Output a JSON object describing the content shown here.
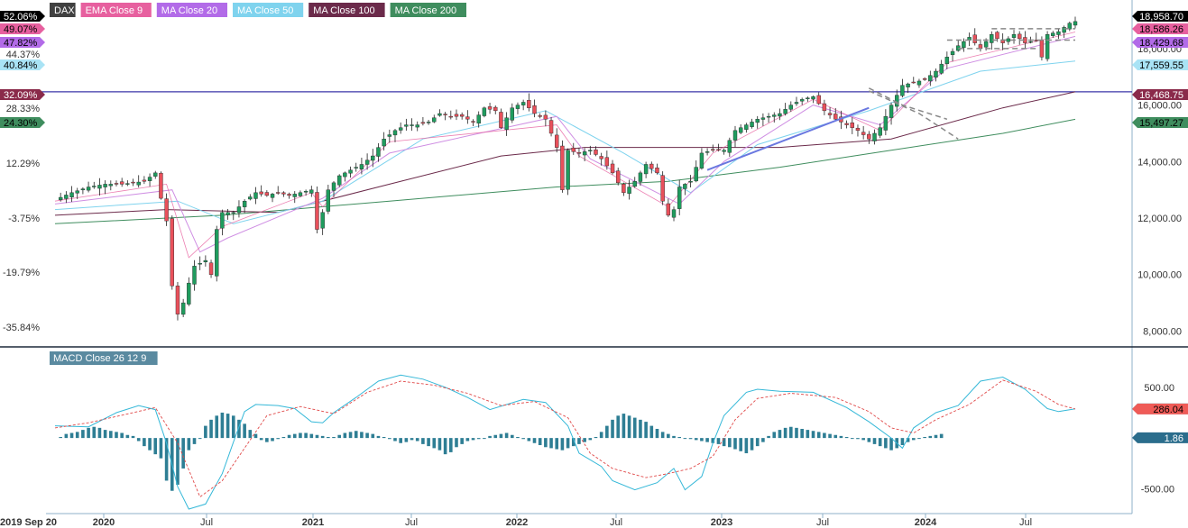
{
  "chart_data": [
    {
      "type": "candlestick",
      "title": "DAX",
      "legend": [
        {
          "name": "DAX",
          "color": "#000000"
        },
        {
          "name": "EMA Close 9",
          "color": "#e7609f"
        },
        {
          "name": "MA Close 20",
          "color": "#b26be8"
        },
        {
          "name": "MA Close 50",
          "color": "#7fd3ee"
        },
        {
          "name": "MA Close 100",
          "color": "#6b2a4a"
        },
        {
          "name": "MA Close 200",
          "color": "#3f8d5e"
        }
      ],
      "x_ticks": [
        "2019 Sep 20",
        "2020",
        "Jul",
        "2021",
        "Jul",
        "2022",
        "Jul",
        "2023",
        "Jul",
        "2024",
        "Jul"
      ],
      "right_axis_ticks": [
        "18,000.00",
        "16,000.00",
        "14,000.00",
        "12,000.00",
        "10,000.00",
        "8,000.00"
      ],
      "left_axis_ticks": [
        "44.37%",
        "28.33%",
        "12.29%",
        "-3.75%",
        "-19.79%",
        "-35.84%"
      ],
      "ylim": [
        7600,
        19400
      ],
      "left_badges": [
        {
          "label": "52.06%",
          "color": "#000000",
          "text_color": "#ffffff"
        },
        {
          "label": "49.07%",
          "color": "#e7609f",
          "text_color": "#000000"
        },
        {
          "label": "47.82%",
          "color": "#b26be8",
          "text_color": "#000000"
        },
        {
          "label": "40.84%",
          "color": "#a9e3f5",
          "text_color": "#000000"
        },
        {
          "label": "32.09%",
          "color": "#8a2a4a",
          "text_color": "#ffffff"
        },
        {
          "label": "24.30%",
          "color": "#3f8d5e",
          "text_color": "#000000"
        }
      ],
      "right_badges": [
        {
          "label": "18,958.70",
          "value": 18958.7,
          "color": "#000000",
          "text_color": "#ffffff"
        },
        {
          "label": "18,586.26",
          "value": 18586.26,
          "color": "#e7609f",
          "text_color": "#000000"
        },
        {
          "label": "18,429.68",
          "value": 18429.68,
          "color": "#b26be8",
          "text_color": "#000000"
        },
        {
          "label": "17,559.55",
          "value": 17559.55,
          "color": "#a9e3f5",
          "text_color": "#000000"
        },
        {
          "label": "16,468.75",
          "value": 16468.75,
          "color": "#8a2a4a",
          "text_color": "#ffffff"
        },
        {
          "label": "15,497.27",
          "value": 15497.27,
          "color": "#3f8d5e",
          "text_color": "#000000"
        }
      ],
      "horizontal_line": 16468.75,
      "close_path": [
        [
          0,
          12650
        ],
        [
          3,
          12900
        ],
        [
          6,
          13100
        ],
        [
          9,
          13200
        ],
        [
          12,
          13200
        ],
        [
          14,
          13250
        ],
        [
          16,
          13300
        ],
        [
          18,
          13600
        ],
        [
          19,
          12700
        ],
        [
          20,
          11900
        ],
        [
          21,
          9600
        ],
        [
          22,
          8600
        ],
        [
          23,
          9000
        ],
        [
          24,
          9700
        ],
        [
          25,
          10300
        ],
        [
          26,
          10400
        ],
        [
          27,
          10500
        ],
        [
          28,
          10000
        ],
        [
          29,
          11600
        ],
        [
          30,
          12200
        ],
        [
          32,
          12200
        ],
        [
          34,
          12600
        ],
        [
          36,
          12900
        ],
        [
          38,
          12800
        ],
        [
          40,
          12900
        ],
        [
          42,
          12800
        ],
        [
          44,
          12900
        ],
        [
          46,
          13000
        ],
        [
          47,
          11600
        ],
        [
          48,
          12200
        ],
        [
          49,
          13000
        ],
        [
          51,
          13500
        ],
        [
          53,
          13700
        ],
        [
          55,
          13900
        ],
        [
          57,
          14200
        ],
        [
          59,
          14800
        ],
        [
          61,
          15100
        ],
        [
          63,
          15300
        ],
        [
          65,
          15300
        ],
        [
          67,
          15400
        ],
        [
          69,
          15700
        ],
        [
          71,
          15600
        ],
        [
          73,
          15600
        ],
        [
          75,
          15400
        ],
        [
          77,
          15900
        ],
        [
          79,
          15800
        ],
        [
          80,
          15200
        ],
        [
          82,
          15900
        ],
        [
          84,
          16100
        ],
        [
          86,
          15700
        ],
        [
          88,
          15500
        ],
        [
          90,
          14500
        ],
        [
          91,
          13000
        ],
        [
          92,
          14400
        ],
        [
          94,
          14300
        ],
        [
          96,
          14400
        ],
        [
          98,
          14100
        ],
        [
          100,
          13600
        ],
        [
          102,
          12900
        ],
        [
          104,
          13300
        ],
        [
          106,
          13900
        ],
        [
          108,
          13600
        ],
        [
          109,
          12600
        ],
        [
          110,
          12100
        ],
        [
          111,
          12300
        ],
        [
          112,
          13100
        ],
        [
          114,
          13300
        ],
        [
          116,
          14300
        ],
        [
          118,
          14400
        ],
        [
          120,
          14400
        ],
        [
          122,
          15100
        ],
        [
          124,
          15300
        ],
        [
          126,
          15500
        ],
        [
          128,
          15600
        ],
        [
          130,
          15700
        ],
        [
          132,
          16000
        ],
        [
          134,
          16200
        ],
        [
          136,
          16300
        ],
        [
          138,
          15800
        ],
        [
          140,
          15500
        ],
        [
          142,
          15300
        ],
        [
          144,
          15100
        ],
        [
          146,
          14800
        ],
        [
          148,
          15200
        ],
        [
          150,
          16000
        ],
        [
          152,
          16700
        ],
        [
          154,
          16800
        ],
        [
          156,
          16900
        ],
        [
          158,
          17200
        ],
        [
          160,
          17700
        ],
        [
          162,
          18100
        ],
        [
          164,
          18400
        ],
        [
          166,
          18000
        ],
        [
          168,
          18500
        ],
        [
          170,
          18200
        ],
        [
          172,
          18500
        ],
        [
          174,
          18200
        ],
        [
          176,
          18300
        ],
        [
          177,
          17700
        ],
        [
          178,
          18500
        ],
        [
          180,
          18600
        ],
        [
          182,
          18900
        ],
        [
          183,
          18958
        ]
      ],
      "ema9_path": [
        [
          0,
          12600
        ],
        [
          20,
          13200
        ],
        [
          24,
          10600
        ],
        [
          30,
          11700
        ],
        [
          46,
          12900
        ],
        [
          48,
          12400
        ],
        [
          60,
          14700
        ],
        [
          90,
          15300
        ],
        [
          94,
          14200
        ],
        [
          110,
          12400
        ],
        [
          118,
          14300
        ],
        [
          136,
          16200
        ],
        [
          148,
          15100
        ],
        [
          160,
          17500
        ],
        [
          183,
          18586
        ]
      ],
      "ma20_path": [
        [
          0,
          12500
        ],
        [
          21,
          13000
        ],
        [
          26,
          10800
        ],
        [
          31,
          11300
        ],
        [
          48,
          12700
        ],
        [
          60,
          14300
        ],
        [
          90,
          15600
        ],
        [
          96,
          14100
        ],
        [
          112,
          12500
        ],
        [
          120,
          14000
        ],
        [
          136,
          16000
        ],
        [
          148,
          15300
        ],
        [
          160,
          17300
        ],
        [
          183,
          18430
        ]
      ],
      "ma50_path": [
        [
          0,
          12300
        ],
        [
          22,
          12600
        ],
        [
          32,
          11800
        ],
        [
          48,
          12600
        ],
        [
          66,
          14800
        ],
        [
          88,
          15800
        ],
        [
          102,
          14300
        ],
        [
          114,
          12900
        ],
        [
          126,
          14600
        ],
        [
          146,
          15800
        ],
        [
          166,
          17200
        ],
        [
          183,
          17560
        ]
      ],
      "ma100_path": [
        [
          0,
          12100
        ],
        [
          20,
          12300
        ],
        [
          40,
          12200
        ],
        [
          60,
          13200
        ],
        [
          80,
          14200
        ],
        [
          95,
          14500
        ],
        [
          110,
          14500
        ],
        [
          130,
          14500
        ],
        [
          150,
          14800
        ],
        [
          170,
          15900
        ],
        [
          183,
          16469
        ]
      ],
      "ma200_path": [
        [
          0,
          11800
        ],
        [
          30,
          12100
        ],
        [
          60,
          12600
        ],
        [
          90,
          13100
        ],
        [
          110,
          13300
        ],
        [
          130,
          13800
        ],
        [
          150,
          14400
        ],
        [
          170,
          15000
        ],
        [
          183,
          15497
        ]
      ],
      "annotations": {
        "support_line": [
          [
            117,
            13700
          ],
          [
            146,
            15900
          ]
        ],
        "channel_lines": [
          [
            [
              146,
              16500
            ],
            [
              155,
              15700
            ],
            [
              162,
              14800
            ]
          ],
          [
            [
              146,
              16600
            ],
            [
              152,
              16000
            ],
            [
              160,
              15500
            ]
          ]
        ],
        "top_dashes": [
          [
            [
              160,
              18300
            ],
            [
              183,
              18300
            ]
          ],
          [
            [
              168,
              18700
            ],
            [
              183,
              18700
            ]
          ],
          [
            [
              162,
              18000
            ],
            [
              176,
              18000
            ]
          ]
        ]
      }
    },
    {
      "type": "bar",
      "title": "MACD Close 26 12 9",
      "right_axis_ticks": [
        "500.00",
        "-500.00"
      ],
      "ylim": [
        -700,
        720
      ],
      "badges": [
        {
          "label": "287.89",
          "value": 287.89,
          "color": "#5cc8d8",
          "text_color": "#000000"
        },
        {
          "label": "286.04",
          "value": 286.04,
          "color": "#ef5b57",
          "text_color": "#000000"
        },
        {
          "label": "1.86",
          "value": 1.86,
          "color": "#2b6d8c",
          "text_color": "#ffffff"
        }
      ],
      "macd_path": [
        [
          0,
          120
        ],
        [
          6,
          110
        ],
        [
          11,
          250
        ],
        [
          15,
          320
        ],
        [
          18,
          280
        ],
        [
          20,
          -50
        ],
        [
          22,
          -480
        ],
        [
          24,
          -700
        ],
        [
          27,
          -650
        ],
        [
          30,
          -350
        ],
        [
          32,
          -40
        ],
        [
          34,
          260
        ],
        [
          36,
          330
        ],
        [
          40,
          320
        ],
        [
          43,
          290
        ],
        [
          46,
          160
        ],
        [
          48,
          150
        ],
        [
          50,
          250
        ],
        [
          54,
          400
        ],
        [
          58,
          560
        ],
        [
          62,
          620
        ],
        [
          66,
          580
        ],
        [
          70,
          500
        ],
        [
          74,
          400
        ],
        [
          78,
          280
        ],
        [
          84,
          380
        ],
        [
          88,
          350
        ],
        [
          92,
          120
        ],
        [
          94,
          -150
        ],
        [
          98,
          -280
        ],
        [
          100,
          -420
        ],
        [
          104,
          -510
        ],
        [
          108,
          -440
        ],
        [
          111,
          -300
        ],
        [
          113,
          -510
        ],
        [
          116,
          -380
        ],
        [
          118,
          -50
        ],
        [
          120,
          220
        ],
        [
          124,
          450
        ],
        [
          126,
          480
        ],
        [
          130,
          460
        ],
        [
          136,
          450
        ],
        [
          142,
          300
        ],
        [
          146,
          160
        ],
        [
          150,
          0
        ],
        [
          152,
          -100
        ],
        [
          154,
          100
        ],
        [
          158,
          250
        ],
        [
          162,
          320
        ],
        [
          166,
          560
        ],
        [
          170,
          600
        ],
        [
          174,
          480
        ],
        [
          178,
          290
        ],
        [
          180,
          260
        ],
        [
          183,
          288
        ]
      ],
      "signal_path": [
        [
          0,
          100
        ],
        [
          6,
          150
        ],
        [
          14,
          250
        ],
        [
          18,
          300
        ],
        [
          22,
          -50
        ],
        [
          26,
          -580
        ],
        [
          30,
          -420
        ],
        [
          34,
          -100
        ],
        [
          38,
          220
        ],
        [
          44,
          310
        ],
        [
          50,
          240
        ],
        [
          56,
          450
        ],
        [
          62,
          560
        ],
        [
          68,
          520
        ],
        [
          74,
          440
        ],
        [
          80,
          320
        ],
        [
          86,
          360
        ],
        [
          92,
          200
        ],
        [
          96,
          -150
        ],
        [
          100,
          -300
        ],
        [
          106,
          -390
        ],
        [
          110,
          -350
        ],
        [
          114,
          -300
        ],
        [
          118,
          -180
        ],
        [
          122,
          180
        ],
        [
          126,
          390
        ],
        [
          132,
          440
        ],
        [
          140,
          400
        ],
        [
          146,
          260
        ],
        [
          150,
          100
        ],
        [
          154,
          50
        ],
        [
          158,
          180
        ],
        [
          164,
          330
        ],
        [
          170,
          570
        ],
        [
          176,
          460
        ],
        [
          180,
          330
        ],
        [
          183,
          286
        ]
      ],
      "histogram": [
        10,
        40,
        50,
        60,
        80,
        100,
        110,
        100,
        80,
        70,
        60,
        50,
        30,
        20,
        -30,
        -80,
        -120,
        -160,
        -200,
        -420,
        -520,
        -460,
        -300,
        -120,
        -60,
        0,
        120,
        180,
        220,
        250,
        240,
        220,
        180,
        140,
        80,
        40,
        -20,
        -40,
        -30,
        -10,
        10,
        30,
        40,
        50,
        50,
        40,
        30,
        20,
        10,
        10,
        30,
        50,
        60,
        70,
        60,
        50,
        40,
        20,
        10,
        -10,
        -30,
        -50,
        -40,
        -20,
        -30,
        -60,
        -80,
        -100,
        -120,
        -160,
        -140,
        -90,
        -60,
        -30,
        -20,
        -10,
        0,
        20,
        30,
        40,
        50,
        30,
        10,
        -10,
        -30,
        -50,
        -70,
        -90,
        -100,
        -110,
        -120,
        -100,
        -80,
        -60,
        -40,
        -20,
        10,
        60,
        120,
        180,
        220,
        240,
        220,
        200,
        180,
        160,
        120,
        90,
        60,
        40,
        20,
        10,
        0,
        -10,
        -20,
        -30,
        -40,
        -50,
        -60,
        -80,
        -90,
        -110,
        -130,
        -150,
        -120,
        -80,
        -40,
        20,
        60,
        80,
        100,
        110,
        100,
        90,
        80,
        70,
        60,
        50,
        40,
        30,
        20,
        10,
        0,
        -10,
        -20,
        -40,
        -60,
        -80,
        -100,
        -120,
        -100,
        -70,
        -40,
        -20,
        0,
        10,
        20,
        30,
        40
      ]
    }
  ]
}
